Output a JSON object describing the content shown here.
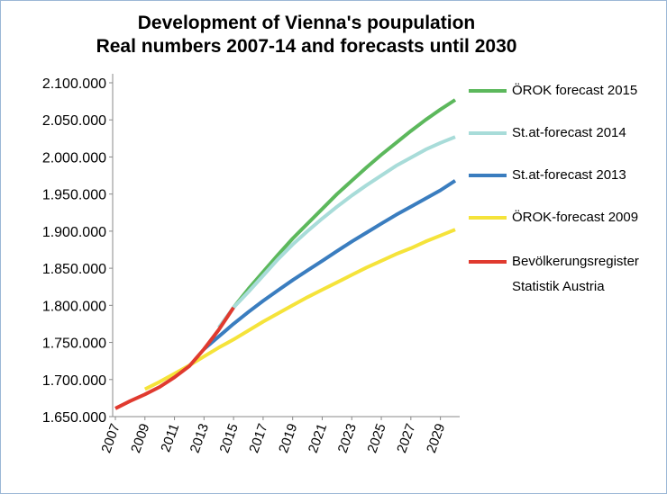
{
  "chart_data": {
    "type": "line",
    "title": "Development of Vienna's poupulation",
    "subtitle": "Real numbers 2007-14 and forecasts until 2030",
    "xlim": [
      2007,
      2030
    ],
    "xticks": [
      2007,
      2009,
      2011,
      2013,
      2015,
      2017,
      2019,
      2021,
      2023,
      2025,
      2027,
      2029
    ],
    "ylim": [
      1650000,
      2100000
    ],
    "yticks": [
      {
        "value": 1650000,
        "label": "1.650.000"
      },
      {
        "value": 1700000,
        "label": "1.700.000"
      },
      {
        "value": 1750000,
        "label": "1.750.000"
      },
      {
        "value": 1800000,
        "label": "1.800.000"
      },
      {
        "value": 1850000,
        "label": "1.850.000"
      },
      {
        "value": 1900000,
        "label": "1.900.000"
      },
      {
        "value": 1950000,
        "label": "1.950.000"
      },
      {
        "value": 2000000,
        "label": "2.000.000"
      },
      {
        "value": 2050000,
        "label": "2.050.000"
      },
      {
        "value": 2100000,
        "label": "2.100.000"
      }
    ],
    "legend": "right",
    "series": [
      {
        "name": "ÖROK forecast 2015",
        "color": "#5cb85c",
        "x": [
          2015,
          2016,
          2017,
          2018,
          2019,
          2020,
          2021,
          2022,
          2023,
          2024,
          2025,
          2026,
          2027,
          2028,
          2029,
          2030
        ],
        "values": [
          1797000,
          1822000,
          1845000,
          1868000,
          1890000,
          1910000,
          1930000,
          1950000,
          1968000,
          1986000,
          2003000,
          2019000,
          2035000,
          2050000,
          2064000,
          2077000
        ]
      },
      {
        "name": "St.at-forecast 2014",
        "color": "#a8dcd9",
        "x": [
          2014,
          2015,
          2016,
          2017,
          2018,
          2019,
          2020,
          2021,
          2022,
          2023,
          2024,
          2025,
          2026,
          2027,
          2028,
          2029,
          2030
        ],
        "values": [
          1770000,
          1797000,
          1818000,
          1840000,
          1862000,
          1882000,
          1900000,
          1917000,
          1933000,
          1948000,
          1962000,
          1975000,
          1988000,
          1999000,
          2010000,
          2019000,
          2027000
        ]
      },
      {
        "name": "St.at-forecast 2013",
        "color": "#3a7dbf",
        "x": [
          2013,
          2014,
          2015,
          2016,
          2017,
          2018,
          2019,
          2020,
          2021,
          2022,
          2023,
          2024,
          2025,
          2026,
          2027,
          2028,
          2029,
          2030
        ],
        "values": [
          1741000,
          1758000,
          1775000,
          1791000,
          1806000,
          1820000,
          1834000,
          1847000,
          1860000,
          1873000,
          1886000,
          1898000,
          1910000,
          1922000,
          1933000,
          1944000,
          1955000,
          1968000
        ]
      },
      {
        "name": "ÖROK-forecast 2009",
        "color": "#f5e33a",
        "x": [
          2009,
          2010,
          2011,
          2012,
          2013,
          2014,
          2015,
          2016,
          2017,
          2018,
          2019,
          2020,
          2021,
          2022,
          2023,
          2024,
          2025,
          2026,
          2027,
          2028,
          2029,
          2030
        ],
        "values": [
          1687000,
          1697000,
          1708000,
          1719000,
          1731000,
          1743000,
          1754000,
          1766000,
          1778000,
          1789000,
          1800000,
          1811000,
          1821000,
          1831000,
          1841000,
          1851000,
          1860000,
          1869000,
          1877000,
          1886000,
          1894000,
          1902000
        ]
      },
      {
        "name": "Bevölkerungsregister Statistik Austria",
        "color": "#e03a2f",
        "x": [
          2007,
          2008,
          2009,
          2010,
          2011,
          2012,
          2013,
          2014,
          2015
        ],
        "values": [
          1661000,
          1671000,
          1680000,
          1690000,
          1703000,
          1718000,
          1741000,
          1767000,
          1797000
        ]
      }
    ]
  }
}
